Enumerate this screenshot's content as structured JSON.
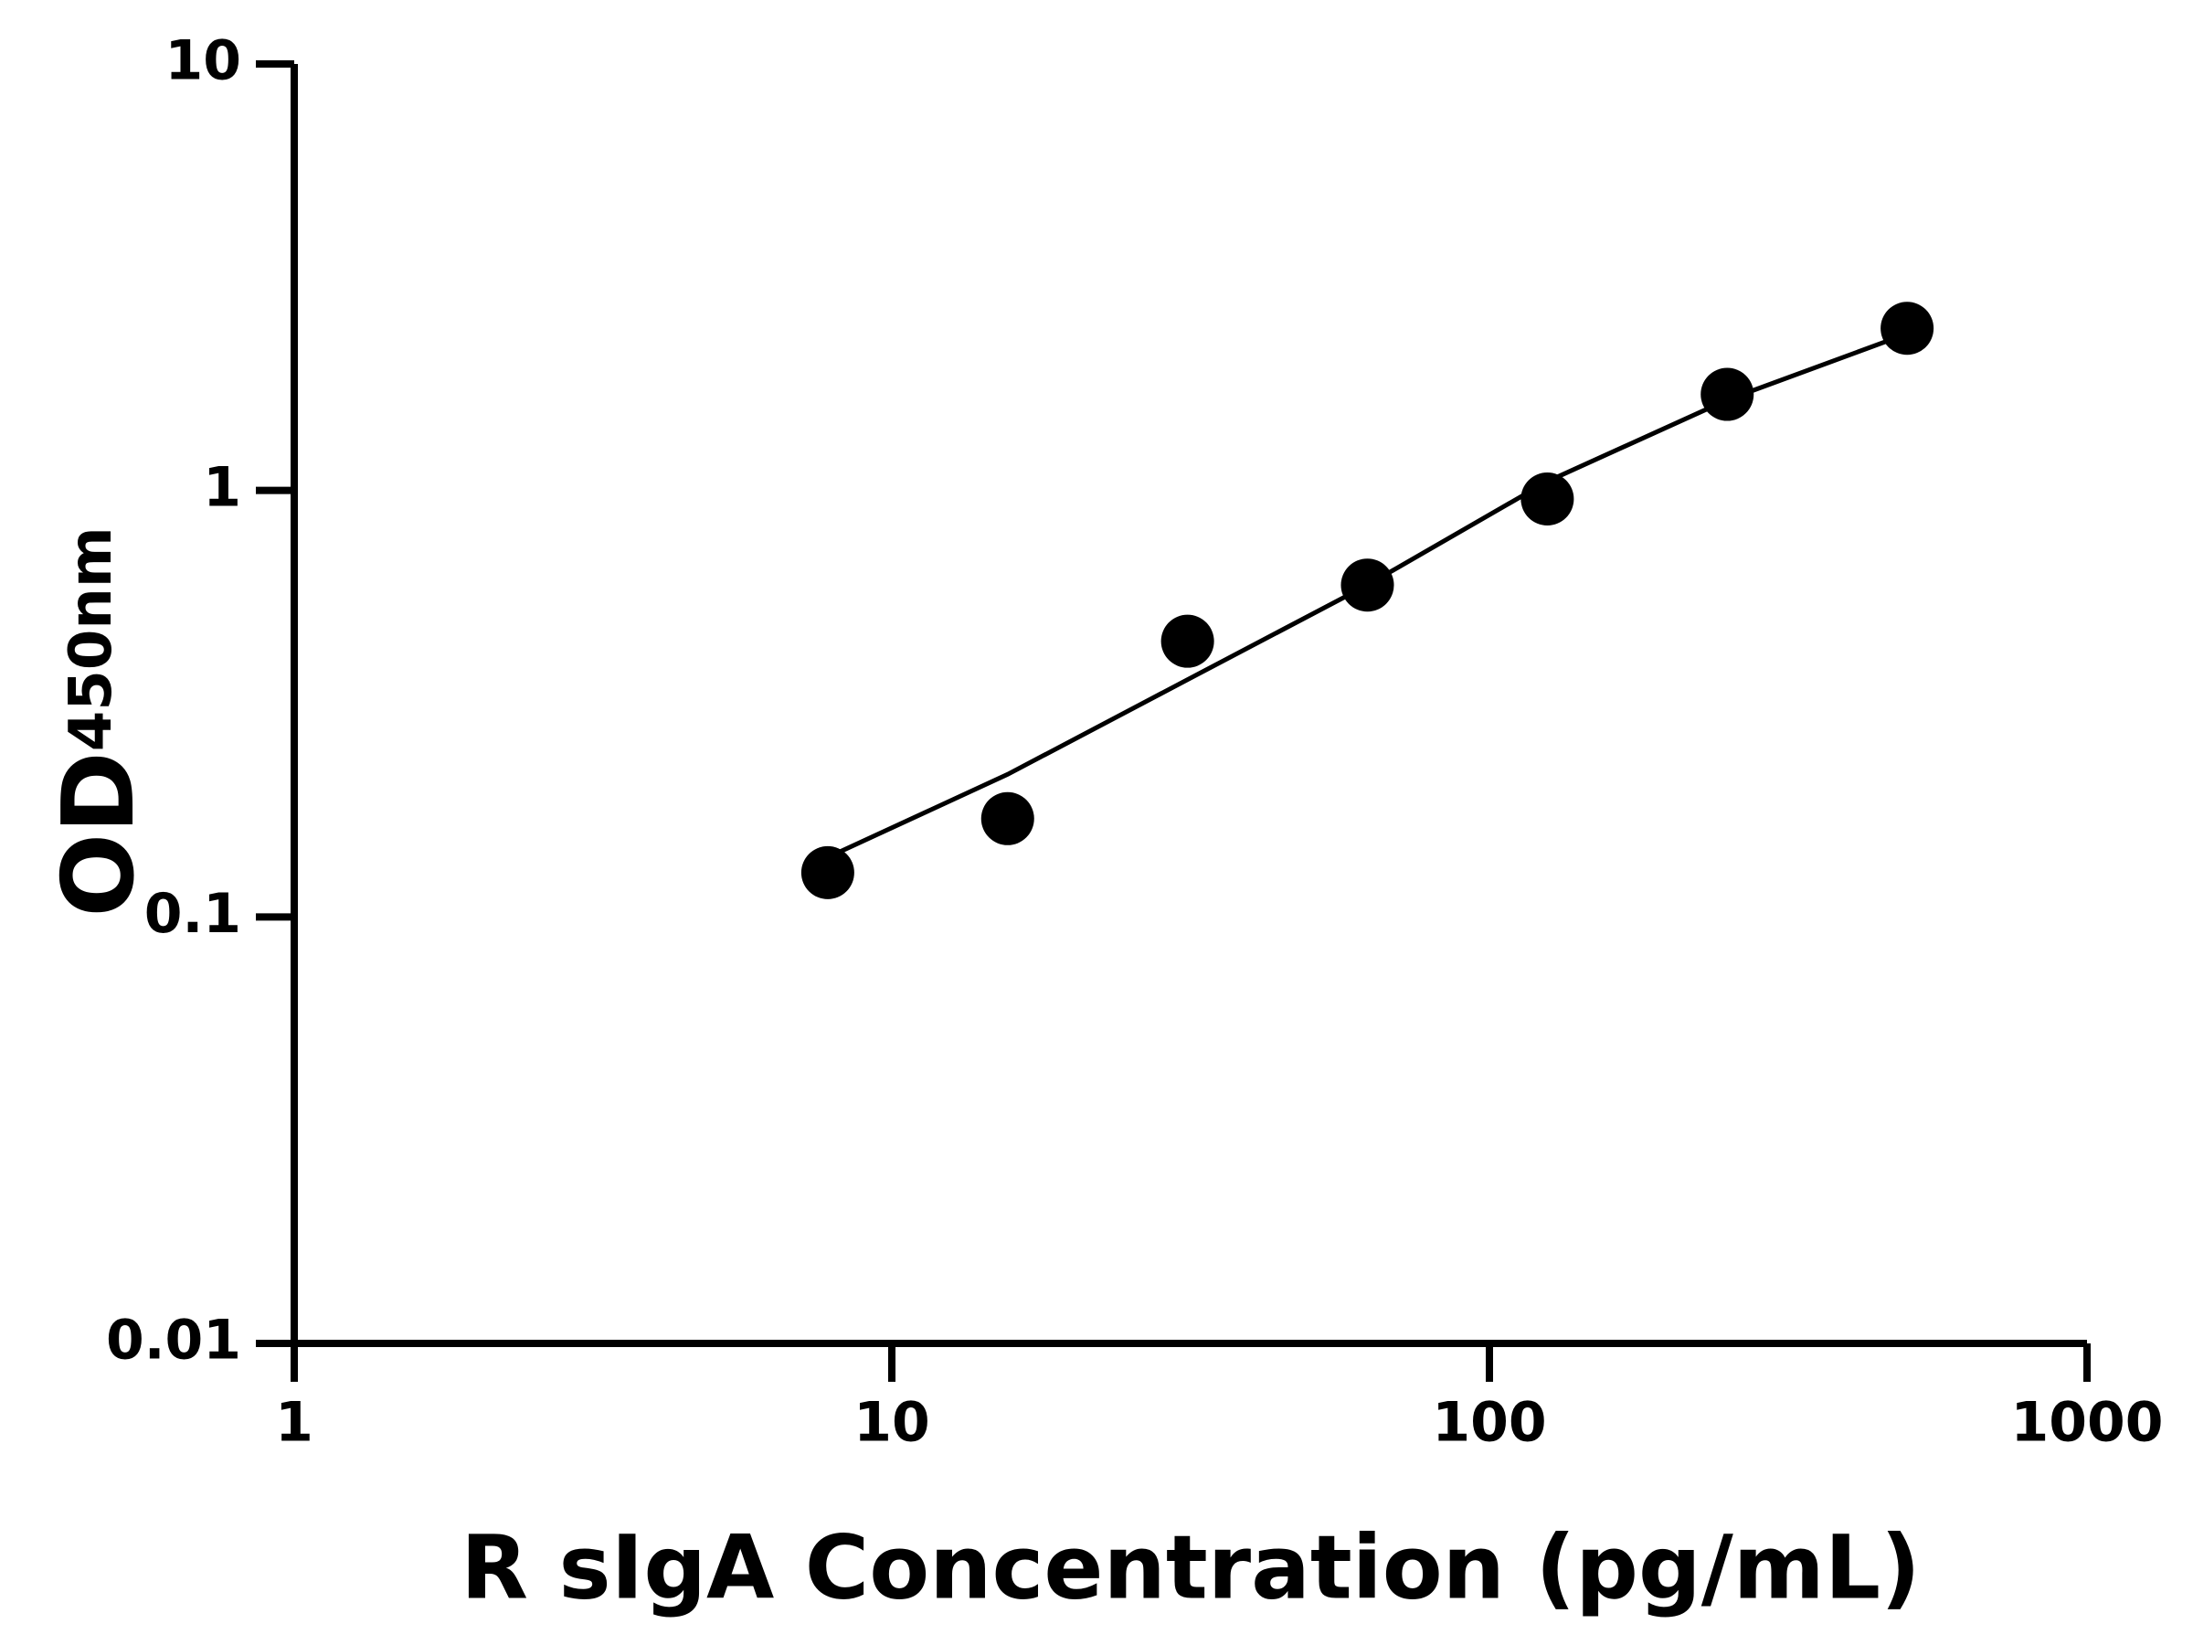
{
  "chart_data": {
    "type": "scatter",
    "xlabel": "R sIgA Concentration (pg/mL)",
    "ylabel": "OD",
    "ylabel_sub": "450nm",
    "x": [
      7.8125,
      15.625,
      31.25,
      62.5,
      125,
      250,
      500
    ],
    "series": [
      {
        "color": "#000000",
        "mode": "markers",
        "values": [
          0.127,
          0.17,
          0.443,
          0.6,
          0.955,
          1.68,
          2.4
        ]
      },
      {
        "color": "#000000",
        "mode": "line",
        "values": [
          0.138,
          0.216,
          0.36,
          0.6,
          1.05,
          1.63,
          2.33
        ]
      }
    ],
    "xscale": "log",
    "yscale": "log",
    "xlim": [
      1,
      1000
    ],
    "ylim": [
      0.01,
      10
    ],
    "xticks": [
      1,
      10,
      100,
      1000
    ],
    "yticks": [
      0.01,
      0.1,
      1,
      10
    ],
    "grid": false
  }
}
